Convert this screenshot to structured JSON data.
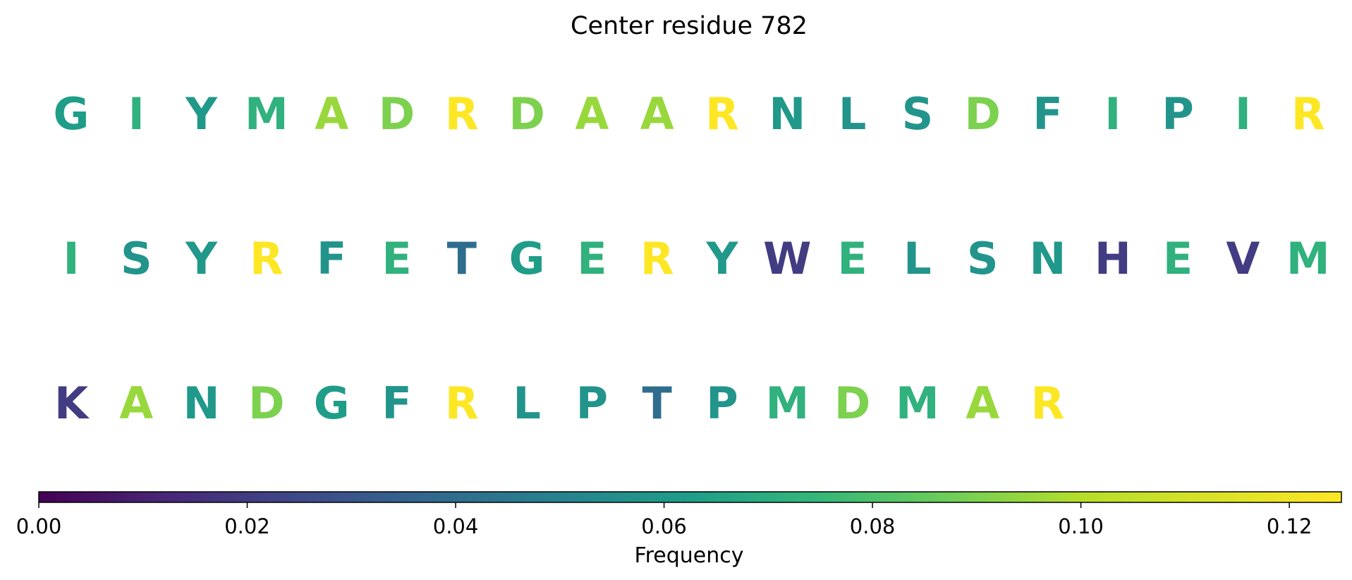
{
  "chart_data": {
    "type": "heatmap",
    "title": "Center residue 782",
    "rows": [
      [
        "G",
        "I",
        "Y",
        "M",
        "A",
        "D",
        "R",
        "D",
        "A",
        "A",
        "R",
        "N",
        "L",
        "S",
        "D",
        "F",
        "I",
        "P",
        "I",
        "R"
      ],
      [
        "I",
        "S",
        "Y",
        "R",
        "F",
        "E",
        "T",
        "G",
        "E",
        "R",
        "Y",
        "W",
        "E",
        "L",
        "S",
        "N",
        "H",
        "E",
        "V",
        "M"
      ],
      [
        "K",
        "A",
        "N",
        "D",
        "G",
        "F",
        "R",
        "L",
        "P",
        "T",
        "P",
        "M",
        "D",
        "M",
        "A",
        "R"
      ]
    ],
    "residue_frequency": {
      "R": 0.125,
      "A": 0.095,
      "D": 0.09,
      "E": 0.072,
      "M": 0.072,
      "I": 0.072,
      "G": 0.062,
      "N": 0.06,
      "Y": 0.06,
      "F": 0.058,
      "L": 0.058,
      "S": 0.058,
      "P": 0.058,
      "T": 0.04,
      "K": 0.02,
      "H": 0.02,
      "V": 0.02,
      "W": 0.02
    },
    "colorbar": {
      "label": "Frequency",
      "min": 0.0,
      "max": 0.125,
      "ticks": [
        0.0,
        0.02,
        0.04,
        0.06,
        0.08,
        0.1,
        0.12
      ],
      "tick_labels": [
        "0.00",
        "0.02",
        "0.04",
        "0.06",
        "0.08",
        "0.10",
        "0.12"
      ],
      "colormap": "viridis",
      "orientation": "horizontal",
      "placement": "bottom"
    }
  }
}
